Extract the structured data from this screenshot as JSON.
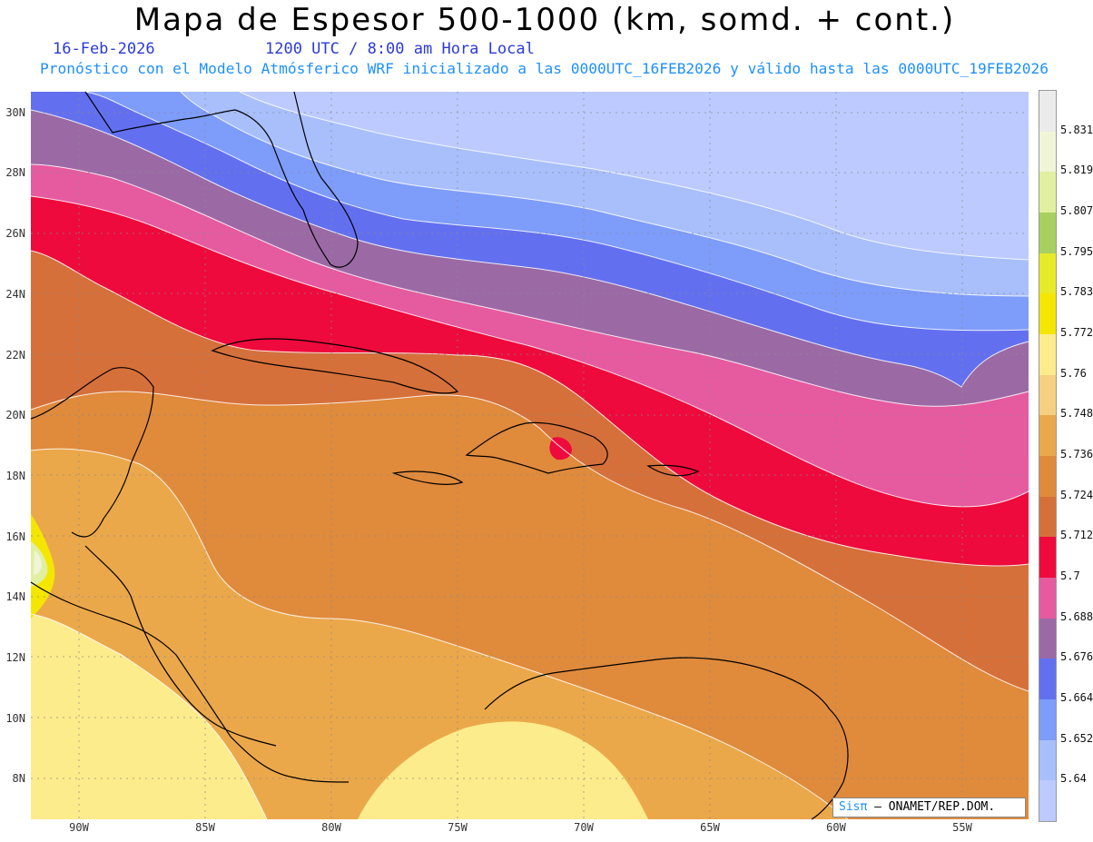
{
  "header": {
    "title": "Mapa de Espesor 500-1000 (km, somd. + cont.)",
    "date": "16-Feb-2026",
    "time": "1200 UTC / 8:00 am Hora Local",
    "forecast": "Pronóstico con el Modelo Atmósferico WRF inicializado a las 0000UTC_16FEB2026 y válido hasta las  0000UTC_19FEB2026"
  },
  "axes": {
    "lat_labels": [
      "30N",
      "28N",
      "26N",
      "24N",
      "22N",
      "20N",
      "18N",
      "16N",
      "14N",
      "12N",
      "10N",
      "8N"
    ],
    "lon_labels": [
      "90W",
      "85W",
      "80W",
      "75W",
      "70W",
      "65W",
      "60W",
      "55W"
    ]
  },
  "colorbar": {
    "labels": [
      "5.831",
      "5.819",
      "5.807",
      "5.795",
      "5.783",
      "5.772",
      "5.76",
      "5.748",
      "5.736",
      "5.724",
      "5.712",
      "5.7",
      "5.688",
      "5.676",
      "5.664",
      "5.652",
      "5.64"
    ],
    "colors": [
      "#ebebeb",
      "#f0f5d8",
      "#e0f0a0",
      "#a8d060",
      "#e6ea28",
      "#f5e600",
      "#fcec8c",
      "#f5d080",
      "#eba84a",
      "#e08a3c",
      "#d6703a",
      "#ee0a3c",
      "#e65aa0",
      "#9b6aa5",
      "#6270f0",
      "#7e9cfa",
      "#a8bffc",
      "#bccaff"
    ]
  },
  "credit": {
    "sis": "Sisπ",
    "org": "– ONAMET/REP.DOM."
  }
}
